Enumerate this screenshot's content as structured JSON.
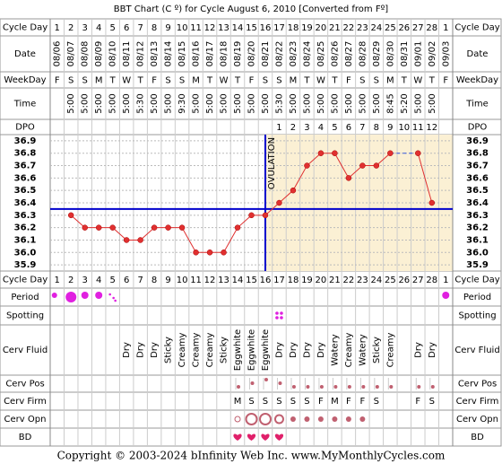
{
  "chart_data": {
    "type": "line",
    "title": "BBT Chart (C º) for Cycle August 6, 2010  [Converted from Fº]",
    "row_labels": {
      "cycle_day": "Cycle Day",
      "date": "Date",
      "weekday": "WeekDay",
      "time": "Time",
      "dpo": "DPO",
      "period": "Period",
      "spotting": "Spotting",
      "cerv_fluid": "Cerv Fluid",
      "cerv_pos": "Cerv Pos",
      "cerv_firm": "Cerv Firm",
      "cerv_opn": "Cerv Opn",
      "bd": "BD"
    },
    "cycle_days": [
      1,
      2,
      3,
      4,
      5,
      6,
      7,
      8,
      9,
      10,
      11,
      12,
      13,
      14,
      15,
      16,
      17,
      18,
      19,
      20,
      21,
      22,
      23,
      24,
      25,
      26,
      27,
      28,
      1
    ],
    "categories": [
      "08/06",
      "08/07",
      "08/08",
      "08/09",
      "08/10",
      "08/11",
      "08/12",
      "08/13",
      "08/14",
      "08/15",
      "08/16",
      "08/17",
      "08/18",
      "08/19",
      "08/20",
      "08/21",
      "08/22",
      "08/23",
      "08/24",
      "08/25",
      "08/26",
      "08/27",
      "08/28",
      "08/29",
      "08/30",
      "08/31",
      "09/01",
      "09/02",
      "09/03"
    ],
    "weekdays": [
      "F",
      "S",
      "S",
      "M",
      "T",
      "W",
      "T",
      "F",
      "S",
      "S",
      "M",
      "T",
      "W",
      "T",
      "F",
      "S",
      "S",
      "M",
      "T",
      "W",
      "T",
      "F",
      "S",
      "S",
      "M",
      "T",
      "W",
      "T",
      "F"
    ],
    "times": [
      null,
      "5:00",
      "5:00",
      "5:00",
      "5:00",
      "5:00",
      "5:30",
      "5:00",
      "5:00",
      "9:30",
      "5:00",
      "5:00",
      "5:00",
      "5:00",
      "5:00",
      "5:00",
      "5:30",
      "5:00",
      "5:00",
      "5:00",
      "5:00",
      "5:00",
      "5:00",
      "5:00",
      "8:45",
      "5:20",
      "5:00",
      "5:00",
      null
    ],
    "dpo": [
      null,
      null,
      null,
      null,
      null,
      null,
      null,
      null,
      null,
      null,
      null,
      null,
      null,
      null,
      null,
      null,
      1,
      2,
      3,
      4,
      5,
      6,
      7,
      8,
      9,
      10,
      11,
      12,
      null
    ],
    "values": [
      null,
      36.3,
      36.2,
      36.2,
      36.2,
      36.1,
      36.1,
      36.2,
      36.2,
      36.2,
      36.0,
      36.0,
      36.0,
      36.2,
      36.3,
      36.3,
      36.4,
      36.5,
      36.7,
      36.8,
      36.8,
      36.6,
      36.7,
      36.7,
      36.8,
      null,
      36.8,
      36.4,
      null
    ],
    "color": "#e03030",
    "ylim": [
      35.85,
      36.95
    ],
    "yticks": [
      36.9,
      36.8,
      36.7,
      36.6,
      36.5,
      36.4,
      36.3,
      36.2,
      36.1,
      {
        "value": 36.0,
        "label": "36.0"
      },
      35.9
    ],
    "grid": true,
    "coverline": 36.35,
    "coverline_color": "#0000cc",
    "ovulation_day": 16,
    "ovulation_label": "OVULATION",
    "luteal_shade": "#fbf0d4",
    "period": [
      "light",
      "heavy",
      "medium",
      "medium",
      "spotting",
      null,
      null,
      null,
      null,
      null,
      null,
      null,
      null,
      null,
      null,
      null,
      null,
      null,
      null,
      null,
      null,
      null,
      null,
      null,
      null,
      null,
      null,
      null,
      "medium"
    ],
    "period_color": "#e020e0",
    "spotting": [
      false,
      false,
      false,
      false,
      false,
      false,
      false,
      false,
      false,
      false,
      false,
      false,
      false,
      false,
      false,
      false,
      true,
      false,
      false,
      false,
      false,
      false,
      false,
      false,
      false,
      false,
      false,
      false,
      false
    ],
    "cerv_fluid": [
      null,
      null,
      null,
      null,
      null,
      "Dry",
      "Dry",
      "Dry",
      "Sticky",
      "Creamy",
      "Creamy",
      "Creamy",
      "Sticky",
      "Eggwhite",
      "Eggwhite",
      "Eggwhite",
      "Dry",
      "Dry",
      "Dry",
      "Dry",
      "Watery",
      "Creamy",
      "Watery",
      "Sticky",
      "Creamy",
      null,
      "Dry",
      "Dry",
      null
    ],
    "cerv_pos": [
      null,
      null,
      null,
      null,
      null,
      null,
      null,
      null,
      null,
      null,
      null,
      null,
      null,
      "low",
      "medium",
      "high",
      "medium",
      "low",
      "low",
      "low",
      "low",
      "low",
      "low",
      "low",
      "low",
      null,
      "low",
      "low",
      null
    ],
    "cerv_firm": [
      null,
      null,
      null,
      null,
      null,
      null,
      null,
      null,
      null,
      null,
      null,
      null,
      null,
      "M",
      "S",
      "S",
      "S",
      "S",
      "S",
      "F",
      "M",
      "F",
      "F",
      "S",
      null,
      null,
      "F",
      "S",
      null
    ],
    "cerv_opn": [
      null,
      null,
      null,
      null,
      null,
      null,
      null,
      null,
      null,
      null,
      null,
      null,
      null,
      "small",
      "large",
      "large",
      "medium",
      "closed",
      "closed",
      "closed",
      "closed",
      "closed",
      "closed",
      null,
      null,
      null,
      null,
      null,
      null
    ],
    "cervix_color": "#c06070",
    "bd": [
      false,
      false,
      false,
      false,
      false,
      false,
      false,
      false,
      false,
      false,
      false,
      false,
      false,
      true,
      true,
      true,
      true,
      false,
      false,
      false,
      false,
      false,
      false,
      false,
      false,
      false,
      false,
      false,
      false
    ],
    "bd_color": "#e0206a",
    "footer": "Copyright © 2003-2024 bInfinity Web Inc.    www.MyMonthlyCycles.com"
  }
}
